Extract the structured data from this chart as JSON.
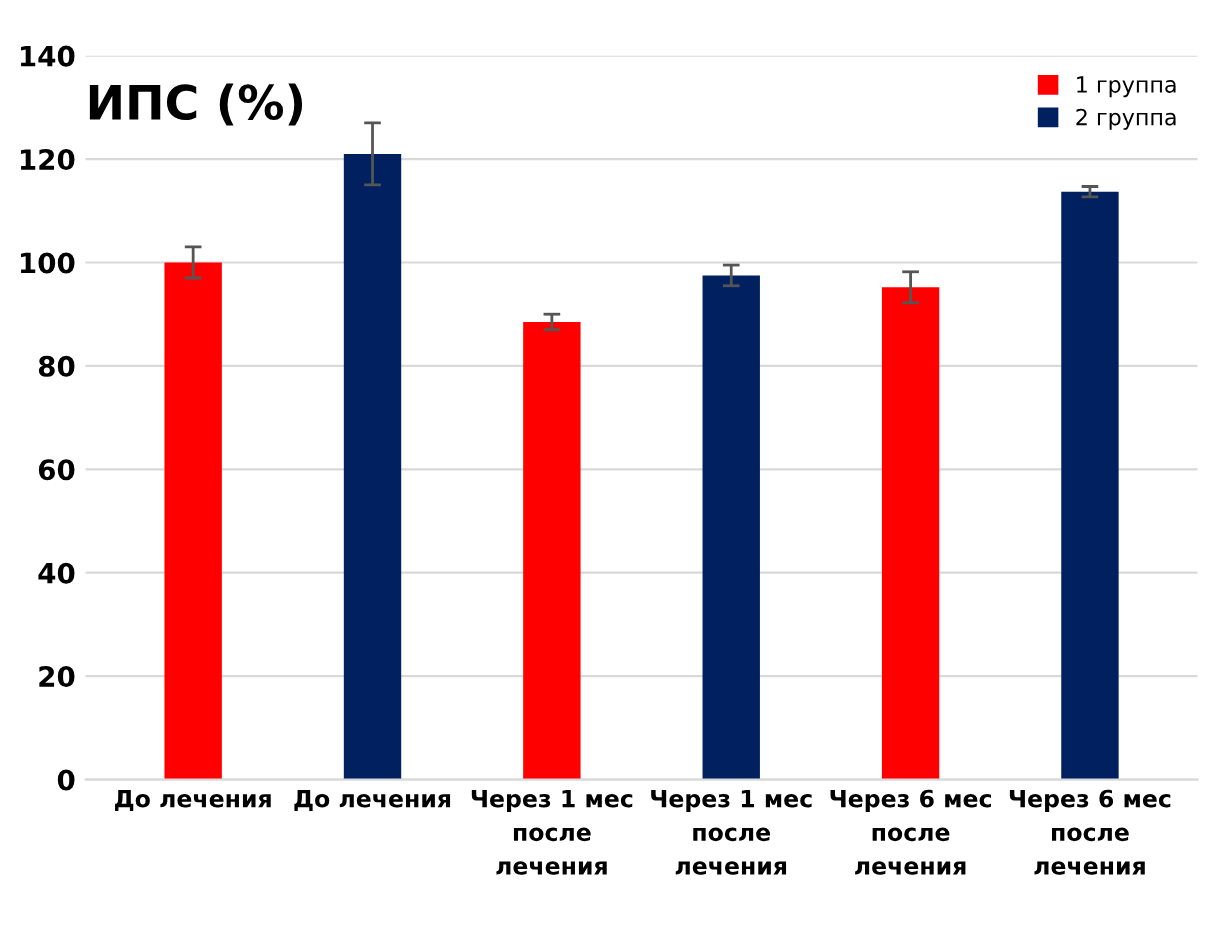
{
  "chart_data": {
    "type": "bar",
    "ylabel": "ИПС (%)",
    "categories": [
      "До лечения",
      "До лечения",
      "Через 1 мес после лечения",
      "Через 1 мес после лечения",
      "Через 6 мес после лечения",
      "Через 6 мес после лечения"
    ],
    "series": [
      {
        "name": "1 группа",
        "color": "#ff0000",
        "values": [
          100,
          null,
          88.5,
          null,
          95.2,
          null
        ],
        "errors": [
          3,
          null,
          1.5,
          null,
          3,
          null
        ]
      },
      {
        "name": "2 группа",
        "color": "#002060",
        "values": [
          null,
          121,
          null,
          97.5,
          null,
          113.7
        ],
        "errors": [
          null,
          6,
          null,
          2,
          null,
          1
        ]
      }
    ],
    "ylim": [
      0,
      140
    ],
    "yticks": [
      0,
      20,
      40,
      60,
      80,
      100,
      120,
      140
    ],
    "grid": "y",
    "legend": "top right"
  }
}
